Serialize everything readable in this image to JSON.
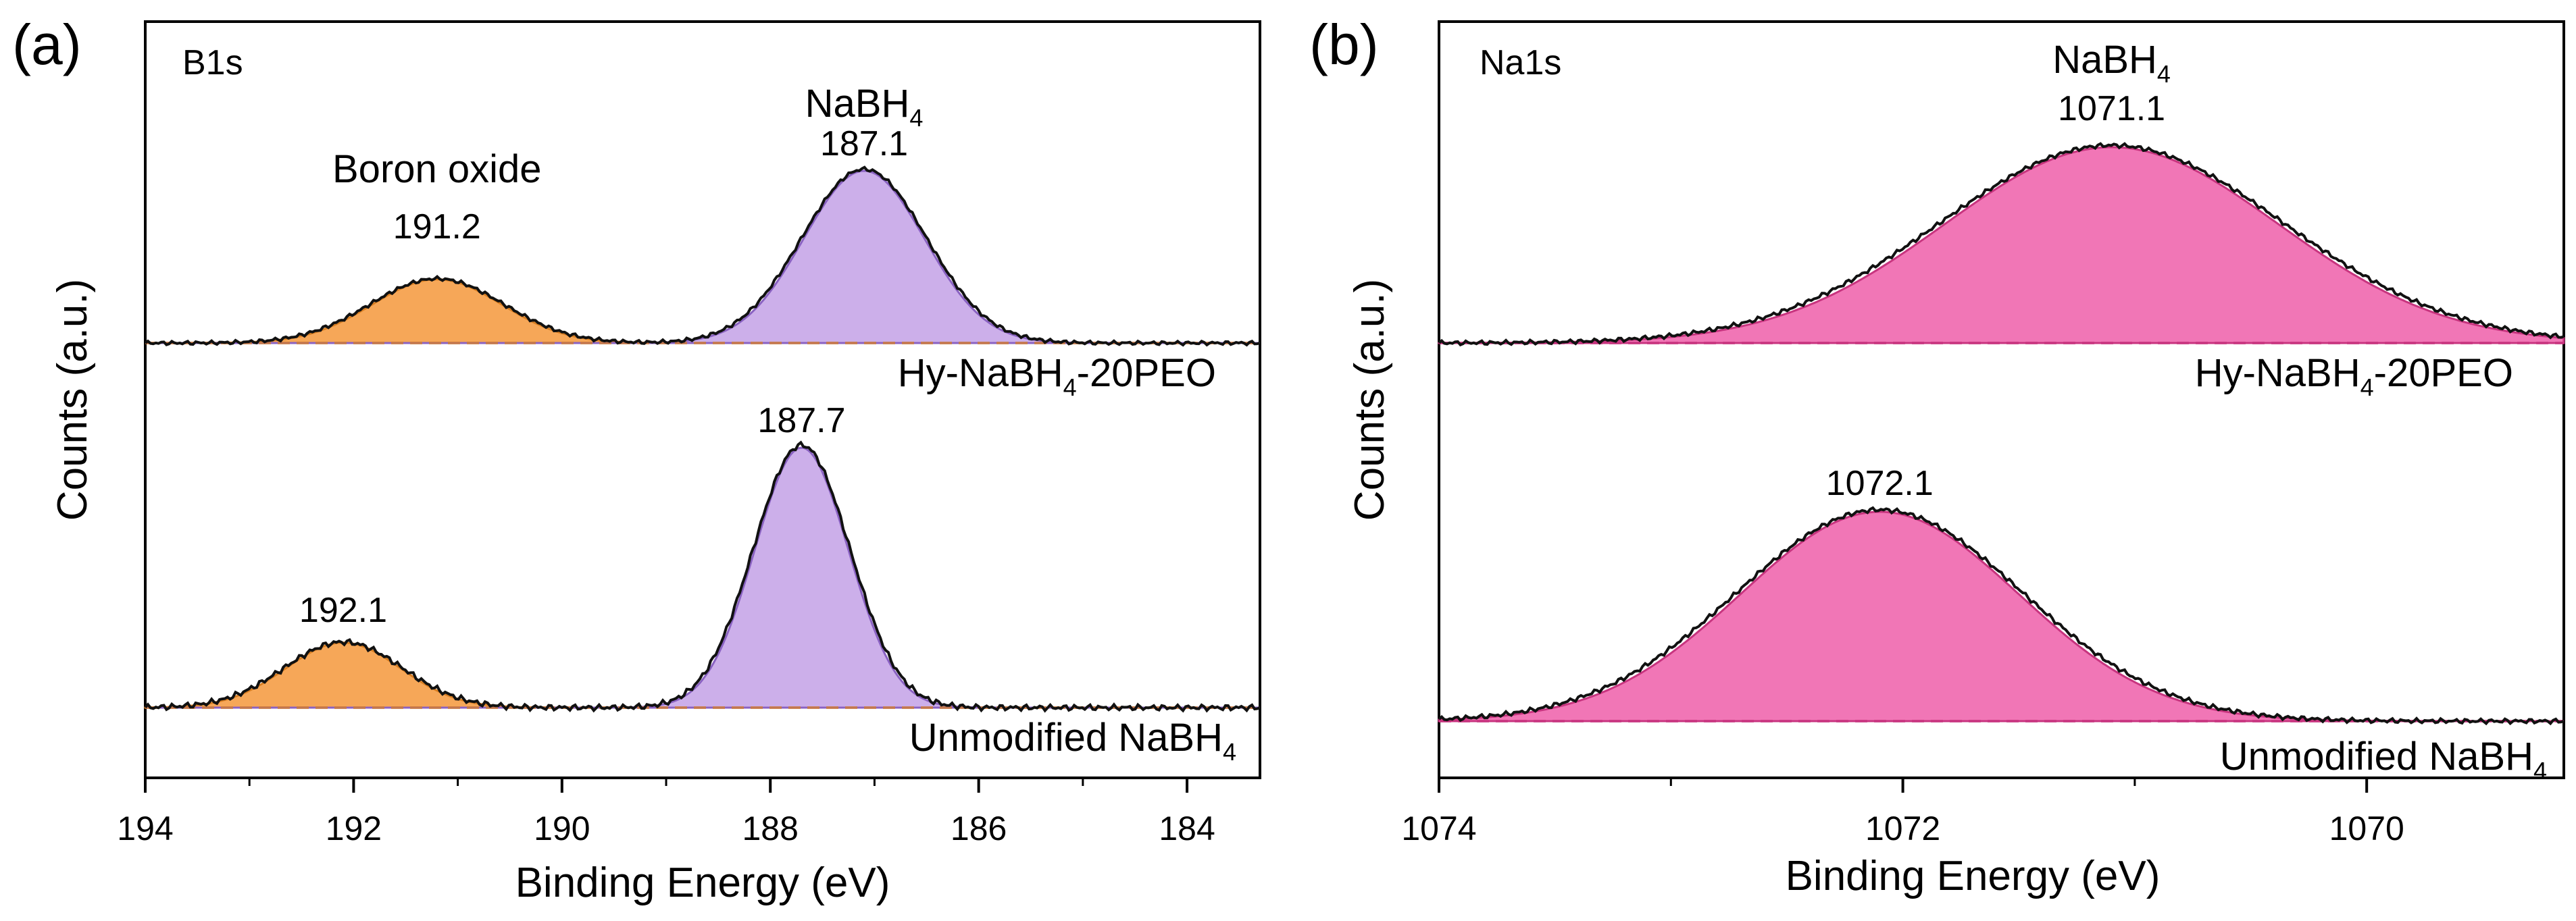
{
  "chart_data": [
    {
      "type": "line",
      "panel_label": "(a)",
      "title": "B1s",
      "xlabel": "Binding Energy (eV)",
      "ylabel": "Counts (a.u.)",
      "xlim": [
        194,
        183.3
      ],
      "x_reversed": true,
      "xticks": [
        194,
        192,
        190,
        188,
        186,
        184
      ],
      "series": [
        {
          "name": "Hy-NaBH4-20PEO",
          "label_main": "Hy-NaBH",
          "label_sub": "4",
          "label_tail": "-20PEO",
          "baseline": 0.0,
          "peaks": [
            {
              "component": "Boron oxide",
              "center": 191.2,
              "sigma": 0.62,
              "height": 0.37,
              "color": "#f5a04a",
              "line": "#d97f22"
            },
            {
              "component": "NaBH4",
              "center": 187.1,
              "sigma": 0.58,
              "height": 1.0,
              "color": "#c8a8e8",
              "line": "#8a62c2"
            }
          ]
        },
        {
          "name": "Unmodified NaBH4",
          "label_main": "Unmodified NaBH",
          "label_sub": "4",
          "label_tail": "",
          "baseline": 0.0,
          "peaks": [
            {
              "component": "Boron oxide",
              "center": 192.1,
              "sigma": 0.55,
              "height": 0.25,
              "color": "#f5a04a",
              "line": "#d97f22"
            },
            {
              "component": "NaBH4",
              "center": 187.7,
              "sigma": 0.45,
              "height": 1.0,
              "color": "#c8a8e8",
              "line": "#8a62c2"
            }
          ]
        }
      ],
      "annotations": [
        {
          "text": "Boron oxide",
          "x": 191.2,
          "series": 0,
          "role": "name"
        },
        {
          "text": "191.2",
          "x": 191.2,
          "series": 0,
          "role": "value"
        },
        {
          "text_main": "NaBH",
          "text_sub": "4",
          "x": 187.1,
          "series": 0,
          "role": "name"
        },
        {
          "text": "187.1",
          "x": 187.1,
          "series": 0,
          "role": "value"
        },
        {
          "text": "187.7",
          "x": 187.7,
          "series": 1,
          "role": "value"
        },
        {
          "text": "192.1",
          "x": 192.1,
          "series": 1,
          "role": "value"
        }
      ]
    },
    {
      "type": "line",
      "panel_label": "(b)",
      "title": "Na1s",
      "xlabel": "Binding Energy (eV)",
      "ylabel": "Counts (a.u.)",
      "xlim": [
        1074,
        1069.15
      ],
      "x_reversed": true,
      "xticks": [
        1074,
        1072,
        1070
      ],
      "series": [
        {
          "name": "Hy-NaBH4-20PEO",
          "label_main": "Hy-NaBH",
          "label_sub": "4",
          "label_tail": "-20PEO",
          "baseline": 0.0,
          "peaks": [
            {
              "component": "NaBH4",
              "center": 1071.1,
              "sigma": 0.72,
              "height": 1.0,
              "color": "#f06ab0",
              "line": "#c8347f"
            }
          ]
        },
        {
          "name": "Unmodified NaBH4",
          "label_main": "Unmodified NaBH",
          "label_sub": "4",
          "label_tail": "",
          "baseline": 0.0,
          "peaks": [
            {
              "component": "NaBH4",
              "center": 1072.1,
              "sigma": 0.6,
              "height": 1.0,
              "color": "#f06ab0",
              "line": "#c8347f"
            }
          ]
        }
      ],
      "annotations": [
        {
          "text_main": "NaBH",
          "text_sub": "4",
          "x": 1071.1,
          "series": 0,
          "role": "name"
        },
        {
          "text": "1071.1",
          "x": 1071.1,
          "series": 0,
          "role": "value"
        },
        {
          "text": "1072.1",
          "x": 1072.1,
          "series": 1,
          "role": "value"
        }
      ]
    }
  ]
}
